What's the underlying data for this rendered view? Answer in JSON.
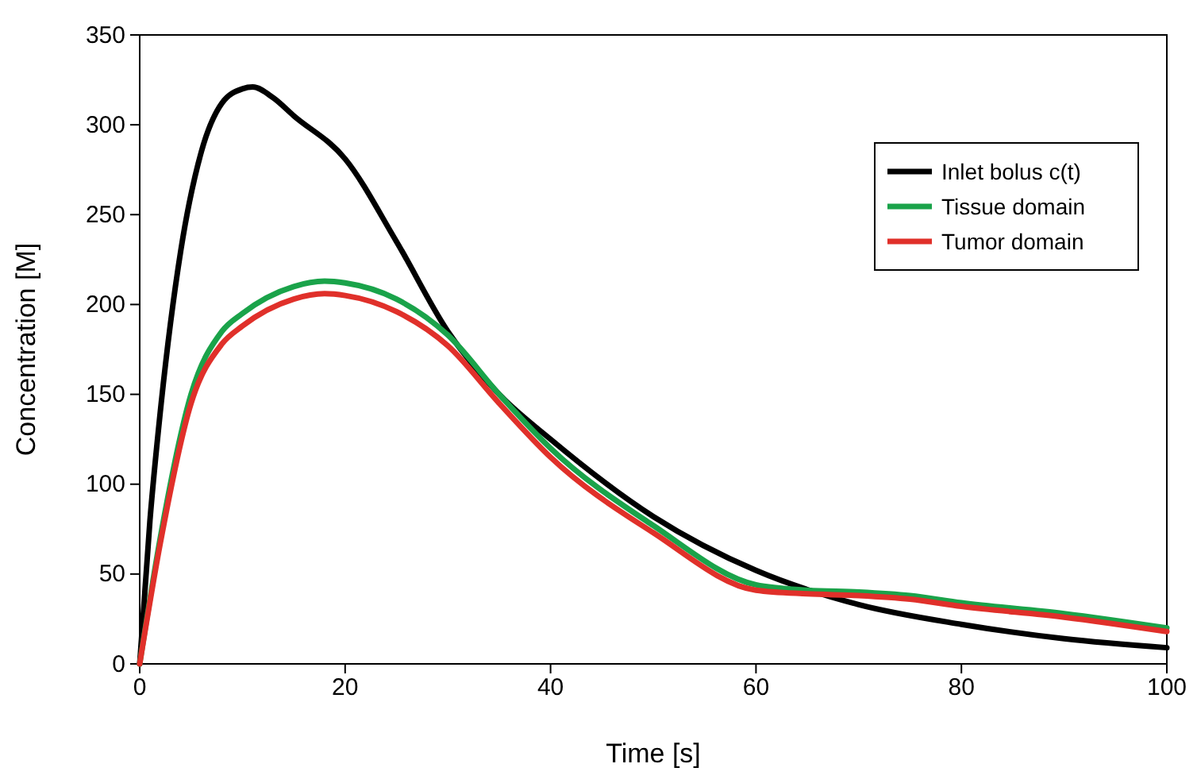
{
  "chart_data": {
    "type": "line",
    "xlabel": "Time [s]",
    "ylabel": "Concentration [M]",
    "xlim": [
      0,
      100
    ],
    "xticks": [
      0,
      20,
      40,
      60,
      80,
      100
    ],
    "ylim": [
      0,
      350
    ],
    "yticks": [
      0,
      50,
      100,
      150,
      200,
      250,
      300,
      350
    ],
    "grid": false,
    "legend": "top right",
    "line_style": "solid",
    "marker": "none",
    "series": [
      {
        "name": "Inlet bolus c(t)",
        "color": "#000000",
        "x": [
          0,
          1,
          2,
          4,
          6,
          8,
          10,
          11,
          13,
          15,
          20,
          25,
          30,
          35,
          40,
          50,
          60,
          70,
          80,
          90,
          100
        ],
        "values": [
          0,
          80,
          140,
          230,
          285,
          312,
          320,
          321,
          315,
          305,
          281,
          235,
          185,
          150,
          125,
          82,
          52,
          33,
          22,
          14,
          9
        ]
      },
      {
        "name": "Tissue domain",
        "color": "#1aa34a",
        "x": [
          0,
          2,
          5,
          8,
          10,
          15,
          18,
          20,
          25,
          30,
          35,
          40,
          50,
          60,
          65,
          70,
          75,
          80,
          90,
          100
        ],
        "values": [
          0,
          70,
          150,
          185,
          195,
          210,
          213,
          212,
          203,
          183,
          150,
          120,
          77,
          44,
          41,
          40,
          38,
          34,
          28,
          20
        ]
      },
      {
        "name": "Tumor domain",
        "color": "#e0302a",
        "x": [
          0,
          2,
          5,
          8,
          10,
          15,
          18,
          20,
          25,
          30,
          35,
          40,
          50,
          60,
          65,
          70,
          75,
          80,
          90,
          100
        ],
        "values": [
          0,
          67,
          145,
          178,
          188,
          203,
          206,
          205,
          196,
          177,
          145,
          115,
          73,
          41,
          39,
          38,
          36,
          32,
          26,
          18
        ]
      }
    ]
  }
}
